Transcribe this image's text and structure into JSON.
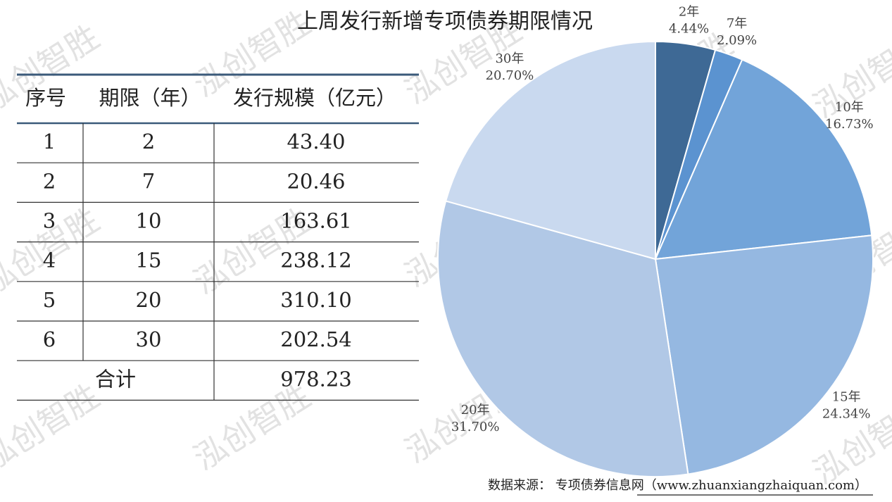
{
  "chart_data": {
    "type": "pie",
    "title": "上周发行新增专项债券期限情况",
    "categories": [
      "2年",
      "7年",
      "10年",
      "15年",
      "20年",
      "30年"
    ],
    "values": [
      4.44,
      2.09,
      16.73,
      24.34,
      31.7,
      20.7
    ],
    "value_labels": [
      "4.44%",
      "2.09%",
      "16.73%",
      "24.34%",
      "31.70%",
      "20.70%"
    ],
    "colors": [
      "#3e6995",
      "#5b93d0",
      "#72a4d9",
      "#95b8e1",
      "#b1c8e6",
      "#c9d9ef"
    ]
  },
  "table": {
    "headers": [
      "序号",
      "期限（年）",
      "发行规模（亿元）"
    ],
    "rows": [
      [
        "1",
        "2",
        "43.40"
      ],
      [
        "2",
        "7",
        "20.46"
      ],
      [
        "3",
        "10",
        "163.61"
      ],
      [
        "4",
        "15",
        "238.12"
      ],
      [
        "5",
        "20",
        "310.10"
      ],
      [
        "6",
        "30",
        "202.54"
      ]
    ],
    "total": [
      "合计",
      "978.23"
    ]
  },
  "source": "数据来源：  专项债券信息网（www.zhuanxiangzhaiquan.com）",
  "watermark": "泓创智胜"
}
